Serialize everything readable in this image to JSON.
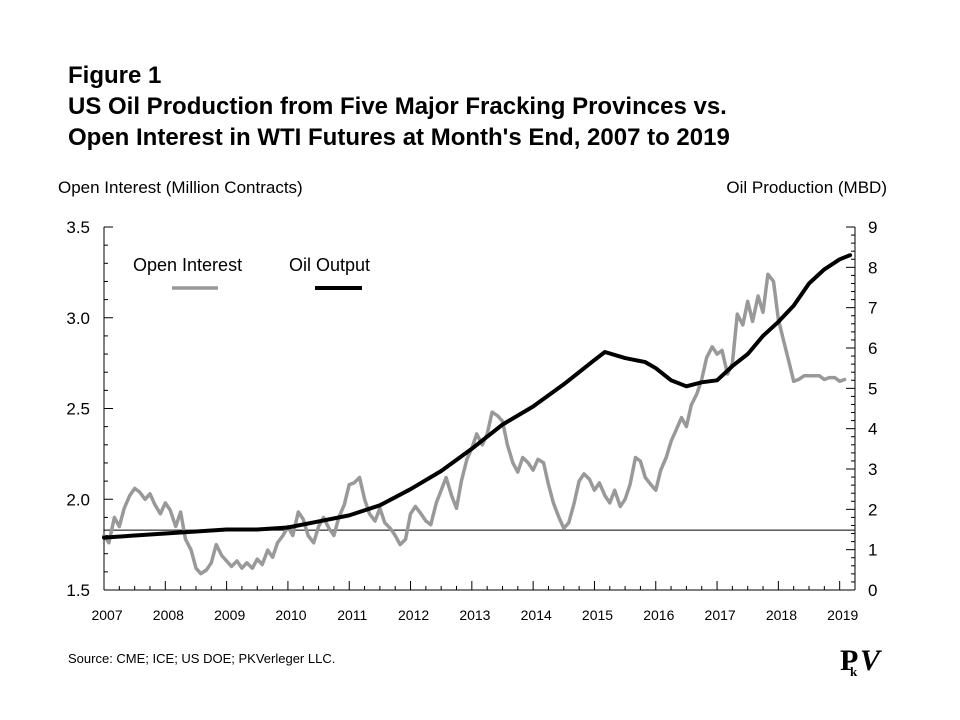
{
  "figure_label": "Figure 1",
  "chart_data": {
    "type": "line",
    "title": "US Oil Production from Five Major Fracking Provinces vs.",
    "title_line2": "Open Interest in WTI Futures at Month's End, 2007 to 2019",
    "ylabel_left": "Open Interest (Million Contracts)",
    "ylabel_right": "Oil Production (MBD)",
    "ylim_left": [
      1.5,
      3.5
    ],
    "ylim_right": [
      0,
      9
    ],
    "yticks_left": [
      "1.5",
      "2.0",
      "2.5",
      "3.0",
      "3.5"
    ],
    "yticks_right": [
      "0",
      "1",
      "2",
      "3",
      "4",
      "5",
      "6",
      "7",
      "8",
      "9"
    ],
    "xlim": [
      2007,
      2019.25
    ],
    "xticks": [
      "2007",
      "2008",
      "2009",
      "2010",
      "2011",
      "2012",
      "2013",
      "2014",
      "2015",
      "2016",
      "2017",
      "2018",
      "2019"
    ],
    "reference_line_left": 1.83,
    "legend_position": "top-left",
    "grid": false,
    "series": [
      {
        "name": "Open Interest",
        "axis": "left",
        "color": "#999999",
        "x": [
          2007.0,
          2007.08,
          2007.17,
          2007.25,
          2007.33,
          2007.42,
          2007.5,
          2007.58,
          2007.67,
          2007.75,
          2007.83,
          2007.92,
          2008.0,
          2008.08,
          2008.17,
          2008.25,
          2008.33,
          2008.42,
          2008.5,
          2008.58,
          2008.67,
          2008.75,
          2008.83,
          2008.92,
          2009.0,
          2009.08,
          2009.17,
          2009.25,
          2009.33,
          2009.42,
          2009.5,
          2009.58,
          2009.67,
          2009.75,
          2009.83,
          2009.92,
          2010.0,
          2010.08,
          2010.17,
          2010.25,
          2010.33,
          2010.42,
          2010.5,
          2010.58,
          2010.67,
          2010.75,
          2010.83,
          2010.92,
          2011.0,
          2011.08,
          2011.17,
          2011.25,
          2011.33,
          2011.42,
          2011.5,
          2011.58,
          2011.67,
          2011.75,
          2011.83,
          2011.92,
          2012.0,
          2012.08,
          2012.17,
          2012.25,
          2012.33,
          2012.42,
          2012.5,
          2012.58,
          2012.67,
          2012.75,
          2012.83,
          2012.92,
          2013.0,
          2013.08,
          2013.17,
          2013.25,
          2013.33,
          2013.42,
          2013.5,
          2013.58,
          2013.67,
          2013.75,
          2013.83,
          2013.92,
          2014.0,
          2014.08,
          2014.17,
          2014.25,
          2014.33,
          2014.42,
          2014.5,
          2014.58,
          2014.67,
          2014.75,
          2014.83,
          2014.92,
          2015.0,
          2015.08,
          2015.17,
          2015.25,
          2015.33,
          2015.42,
          2015.5,
          2015.58,
          2015.67,
          2015.75,
          2015.83,
          2015.92,
          2016.0,
          2016.08,
          2016.17,
          2016.25,
          2016.33,
          2016.42,
          2016.5,
          2016.58,
          2016.67,
          2016.75,
          2016.83,
          2016.92,
          2017.0,
          2017.08,
          2017.17,
          2017.25,
          2017.33,
          2017.42,
          2017.5,
          2017.58,
          2017.67,
          2017.75,
          2017.83,
          2017.92,
          2018.0,
          2018.08,
          2018.17,
          2018.25,
          2018.33,
          2018.42,
          2018.5,
          2018.58,
          2018.67,
          2018.75,
          2018.83,
          2018.92,
          2019.0,
          2019.08
        ],
        "values": [
          1.8,
          1.76,
          1.9,
          1.85,
          1.95,
          2.02,
          2.06,
          2.04,
          2.0,
          2.03,
          1.97,
          1.92,
          1.98,
          1.94,
          1.85,
          1.93,
          1.78,
          1.72,
          1.62,
          1.59,
          1.61,
          1.65,
          1.75,
          1.69,
          1.66,
          1.63,
          1.66,
          1.62,
          1.65,
          1.62,
          1.67,
          1.64,
          1.72,
          1.68,
          1.76,
          1.8,
          1.85,
          1.8,
          1.93,
          1.89,
          1.8,
          1.76,
          1.85,
          1.9,
          1.84,
          1.8,
          1.9,
          1.97,
          2.08,
          2.09,
          2.12,
          2.0,
          1.92,
          1.88,
          1.95,
          1.87,
          1.84,
          1.8,
          1.75,
          1.78,
          1.92,
          1.96,
          1.92,
          1.88,
          1.86,
          1.98,
          2.05,
          2.12,
          2.02,
          1.95,
          2.1,
          2.22,
          2.28,
          2.36,
          2.3,
          2.36,
          2.48,
          2.46,
          2.43,
          2.3,
          2.2,
          2.15,
          2.23,
          2.2,
          2.16,
          2.22,
          2.2,
          2.08,
          1.98,
          1.9,
          1.84,
          1.87,
          1.98,
          2.1,
          2.14,
          2.11,
          2.05,
          2.09,
          2.02,
          1.98,
          2.05,
          1.96,
          2.0,
          2.08,
          2.23,
          2.21,
          2.12,
          2.08,
          2.05,
          2.16,
          2.23,
          2.32,
          2.38,
          2.45,
          2.4,
          2.52,
          2.58,
          2.66,
          2.78,
          2.84,
          2.8,
          2.82,
          2.69,
          2.75,
          3.02,
          2.96,
          3.09,
          2.98,
          3.12,
          3.03,
          3.24,
          3.2,
          2.99,
          2.88,
          2.76,
          2.65,
          2.66,
          2.68,
          2.68,
          2.68,
          2.68,
          2.66,
          2.67,
          2.67,
          2.65,
          2.66
        ]
      },
      {
        "name": "Oil Output",
        "axis": "right",
        "color": "#000000",
        "x": [
          2007.0,
          2007.5,
          2008.0,
          2008.5,
          2009.0,
          2009.5,
          2010.0,
          2010.5,
          2011.0,
          2011.5,
          2012.0,
          2012.5,
          2013.0,
          2013.5,
          2014.0,
          2014.5,
          2015.0,
          2015.17,
          2015.5,
          2015.83,
          2016.0,
          2016.25,
          2016.5,
          2016.75,
          2017.0,
          2017.25,
          2017.5,
          2017.75,
          2018.0,
          2018.25,
          2018.5,
          2018.75,
          2019.0,
          2019.17
        ],
        "values": [
          1.3,
          1.35,
          1.4,
          1.45,
          1.5,
          1.5,
          1.55,
          1.7,
          1.85,
          2.1,
          2.5,
          2.95,
          3.5,
          4.1,
          4.55,
          5.1,
          5.7,
          5.9,
          5.75,
          5.65,
          5.5,
          5.2,
          5.05,
          5.15,
          5.2,
          5.55,
          5.85,
          6.3,
          6.65,
          7.05,
          7.6,
          7.95,
          8.2,
          8.3
        ]
      }
    ]
  },
  "source_text": "Source: CME; ICE; US DOE; PKVerleger LLC.",
  "logo": {
    "icon": "pkv-logo-icon",
    "main_letter": "P",
    "sub_letter": "k",
    "tail_letter": "V"
  }
}
